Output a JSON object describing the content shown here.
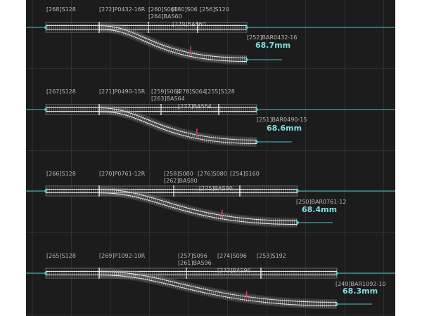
{
  "colors": {
    "background": "#1c1c1c",
    "grid": "#2e2e2e",
    "rail": "#e6e6e6",
    "tie": "#9a9a9a",
    "cursor": "#ffffff",
    "guide": "#48c6c4",
    "marker": "#e0405a",
    "label": "#b9b9b9",
    "measure": "#7fe0de"
  },
  "layouts": [
    {
      "id": "layout-1",
      "labels": {
        "straight_start": "[268]S128",
        "turnout": "[272]P0432-16R",
        "straight_a": "[260]S060",
        "straight_b": "[180]S06",
        "straight_c": "[256]S120",
        "bas_top": "[264]BAS60",
        "bas_mid": "[279]BAS60",
        "end_piece": "[252]BAR0432-16",
        "measurement": "68.7mm"
      }
    },
    {
      "id": "layout-2",
      "labels": {
        "straight_start": "[267]S128",
        "turnout": "[271]P0490-15R",
        "straight_a": "[259]S064",
        "straight_b": "[278]S064",
        "straight_c": "[255]S128",
        "bas_top": "[263]BAS64",
        "bas_mid": "[277]BAS64",
        "end_piece": "[251]BAR0490-15",
        "measurement": "68.6mm"
      }
    },
    {
      "id": "layout-3",
      "labels": {
        "straight_start": "[266]S128",
        "turnout": "[270]P0761-12R",
        "straight_a": "[258]S080",
        "straight_b": "[276]S080",
        "straight_c": "[254]S160",
        "bas_top": "[262]BAS80",
        "bas_mid": "[275]BAS80",
        "end_piece": "[250]BAR0761-12",
        "measurement": "68.4mm"
      }
    },
    {
      "id": "layout-4",
      "labels": {
        "straight_start": "[265]S128",
        "turnout": "[269]P1092-10R",
        "straight_a": "[257]S096",
        "straight_b": "[274]S096",
        "straight_c": "[253]S192",
        "bas_top": "[261]BAS96",
        "bas_mid": "[273]BAS96",
        "end_piece": "[249]BAR1092-10",
        "measurement": "68.3mm"
      }
    }
  ]
}
